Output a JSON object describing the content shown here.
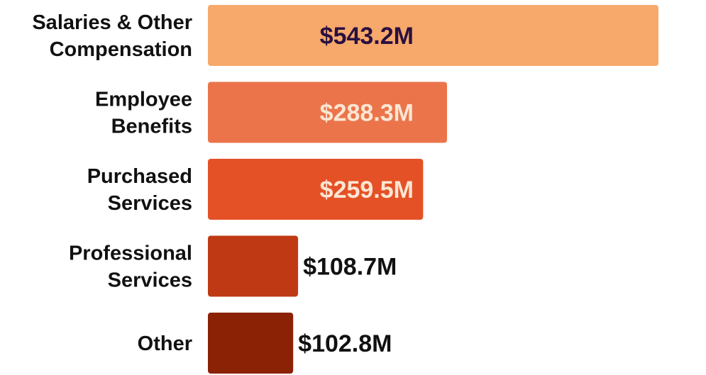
{
  "chart_data": {
    "type": "bar",
    "orientation": "horizontal",
    "categories": [
      [
        "Salaries & Other",
        "Compensation"
      ],
      [
        "Employee",
        "Benefits"
      ],
      [
        "Purchased",
        "Services"
      ],
      [
        "Professional",
        "Services"
      ],
      [
        "Other"
      ]
    ],
    "values": [
      543.2,
      288.3,
      259.5,
      108.7,
      102.8
    ],
    "value_labels": [
      "$543.2M",
      "$288.3M",
      "$259.5M",
      "$108.7M",
      "$102.8M"
    ],
    "colors": [
      "#F6A96B",
      "#EB744B",
      "#E55127",
      "#BF3A14",
      "#8B2105"
    ],
    "label_colors": [
      "#2A1040",
      "#FBE6D3",
      "#FBE6D3",
      "#111111",
      "#111111"
    ],
    "label_position": [
      "inside",
      "inside",
      "inside",
      "outside",
      "outside"
    ],
    "title": "",
    "xlabel": "",
    "ylabel": "",
    "xlim": [
      0,
      543.2
    ],
    "grid": false,
    "legend": "none"
  }
}
